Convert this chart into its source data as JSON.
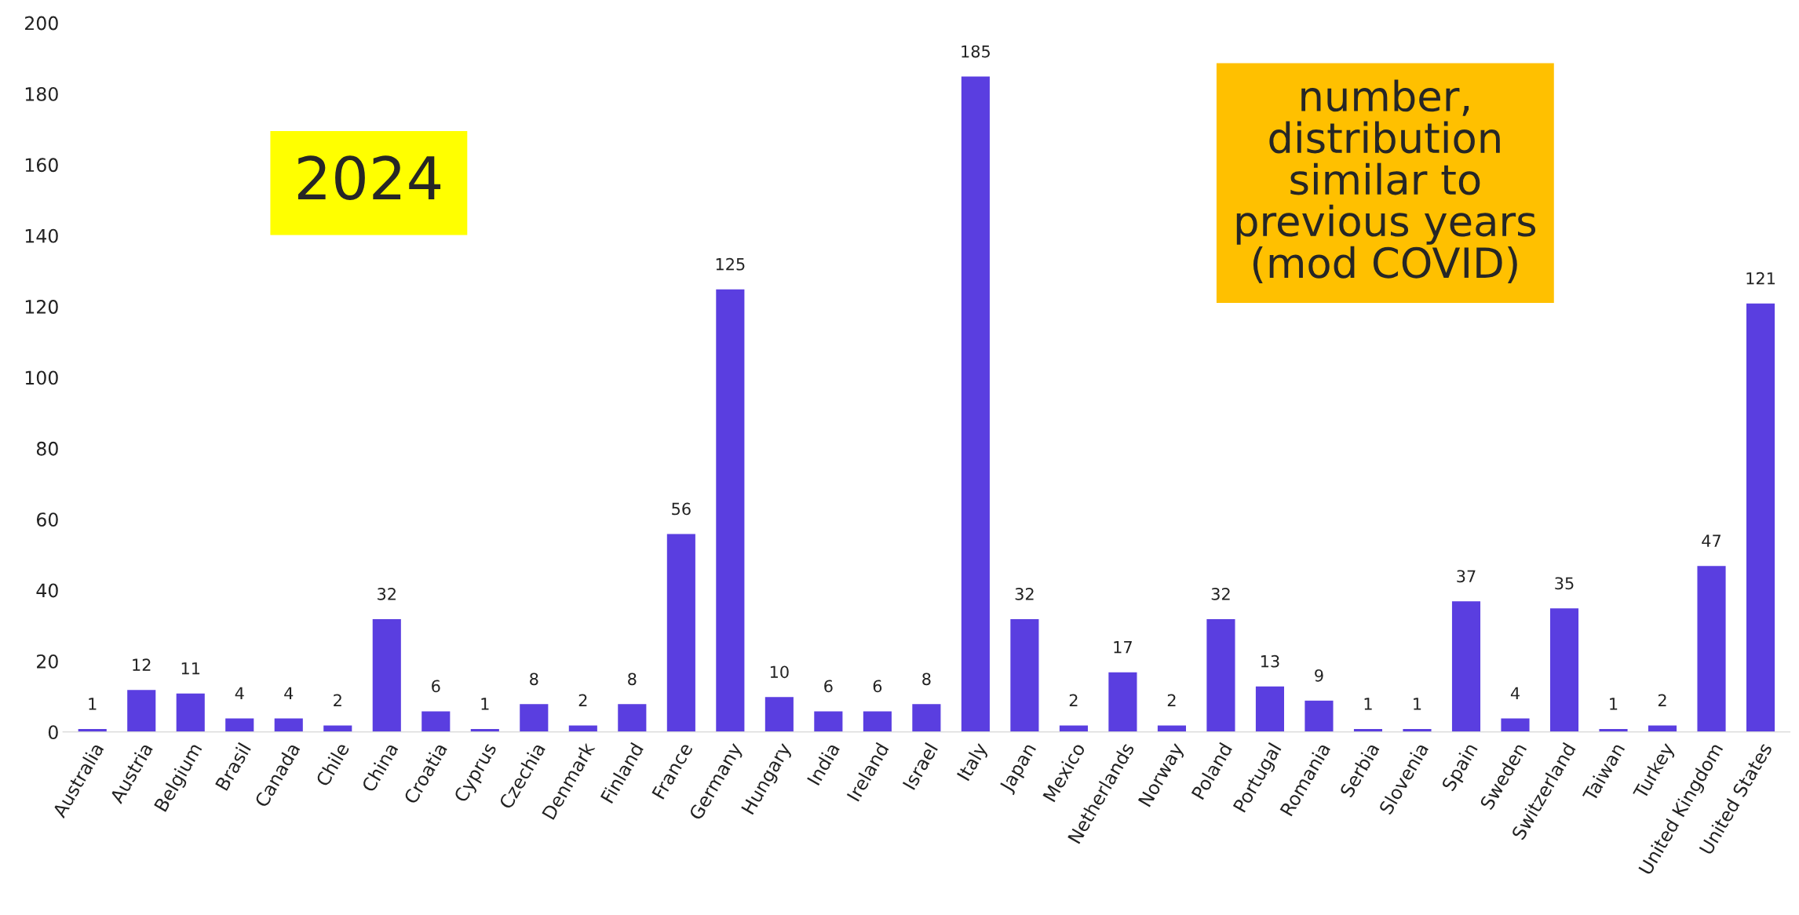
{
  "chart_data": {
    "type": "bar",
    "categories": [
      "Australia",
      "Austria",
      "Belgium",
      "Brasil",
      "Canada",
      "Chile",
      "China",
      "Croatia",
      "Cyprus",
      "Czechia",
      "Denmark",
      "Finland",
      "France",
      "Germany",
      "Hungary",
      "India",
      "Ireland",
      "Israel",
      "Italy",
      "Japan",
      "Mexico",
      "Netherlands",
      "Norway",
      "Poland",
      "Portugal",
      "Romania",
      "Serbia",
      "Slovenia",
      "Spain",
      "Sweden",
      "Switzerland",
      "Taiwan",
      "Turkey",
      "United Kingdom",
      "United States"
    ],
    "values": [
      1,
      12,
      11,
      4,
      4,
      2,
      32,
      6,
      1,
      8,
      2,
      8,
      56,
      125,
      10,
      6,
      6,
      8,
      185,
      32,
      2,
      17,
      2,
      32,
      13,
      9,
      1,
      1,
      37,
      4,
      35,
      1,
      2,
      47,
      121
    ],
    "color": "#5a3ee0",
    "ylim": [
      0,
      200
    ],
    "yticks": [
      0,
      20,
      40,
      60,
      80,
      100,
      120,
      140,
      160,
      180,
      200
    ],
    "data_labels": true,
    "grid": false,
    "annotations": [
      "2024",
      "number,\ndistribution\nsimilar to\nprevious years\n(mod COVID)"
    ]
  }
}
